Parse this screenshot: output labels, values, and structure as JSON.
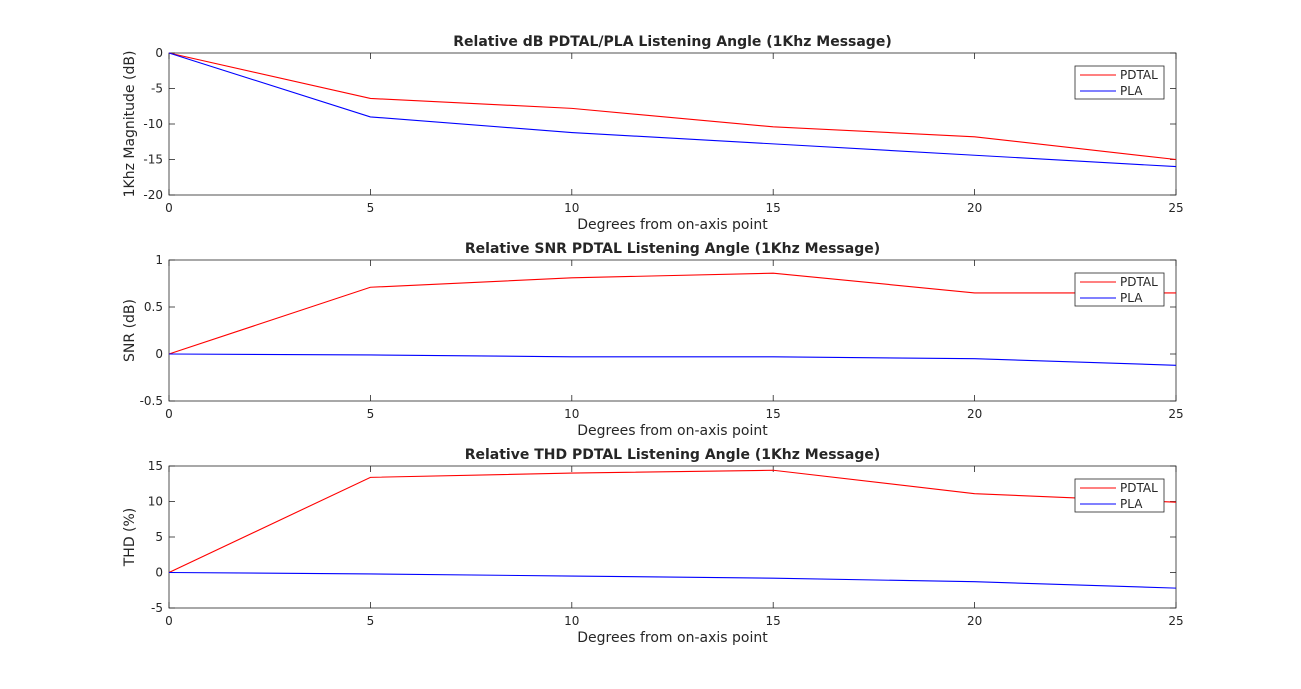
{
  "chart_data": [
    {
      "type": "line",
      "title": "Relative dB PDTAL/PLA Listening Angle (1Khz Message)",
      "xlabel": "Degrees from on-axis point",
      "ylabel": "1Khz Magnitude (dB)",
      "x": [
        0,
        5,
        10,
        15,
        20,
        25
      ],
      "xlim": [
        0,
        25
      ],
      "ylim": [
        -20,
        0
      ],
      "xticks": [
        "0",
        "5",
        "10",
        "15",
        "20",
        "25"
      ],
      "yticks": [
        "-20",
        "-15",
        "-10",
        "-5",
        "0"
      ],
      "grid": false,
      "legend_position": "top-right",
      "series": [
        {
          "name": "PDTAL",
          "color": "#ff0000",
          "values": [
            0,
            -6.4,
            -7.8,
            -10.4,
            -11.8,
            -15.0
          ]
        },
        {
          "name": "PLA",
          "color": "#0000ff",
          "values": [
            0,
            -9.0,
            -11.2,
            -12.8,
            -14.4,
            -16.0
          ]
        }
      ]
    },
    {
      "type": "line",
      "title": "Relative SNR PDTAL Listening Angle (1Khz Message)",
      "xlabel": "Degrees from on-axis point",
      "ylabel": "SNR (dB)",
      "x": [
        0,
        5,
        10,
        15,
        20,
        25
      ],
      "xlim": [
        0,
        25
      ],
      "ylim": [
        -0.5,
        1
      ],
      "xticks": [
        "0",
        "5",
        "10",
        "15",
        "20",
        "25"
      ],
      "yticks": [
        "-0.5",
        "0",
        "0.5",
        "1"
      ],
      "grid": false,
      "legend_position": "top-right",
      "series": [
        {
          "name": "PDTAL",
          "color": "#ff0000",
          "values": [
            0,
            0.71,
            0.81,
            0.86,
            0.65,
            0.65
          ]
        },
        {
          "name": "PLA",
          "color": "#0000ff",
          "values": [
            0,
            -0.01,
            -0.03,
            -0.03,
            -0.05,
            -0.12
          ]
        }
      ]
    },
    {
      "type": "line",
      "title": "Relative THD PDTAL Listening Angle (1Khz Message)",
      "xlabel": "Degrees from on-axis point",
      "ylabel": "THD (%)",
      "x": [
        0,
        5,
        10,
        15,
        20,
        25
      ],
      "xlim": [
        0,
        25
      ],
      "ylim": [
        -5,
        15
      ],
      "xticks": [
        "0",
        "5",
        "10",
        "15",
        "20",
        "25"
      ],
      "yticks": [
        "-5",
        "0",
        "5",
        "10",
        "15"
      ],
      "grid": false,
      "legend_position": "top-right",
      "series": [
        {
          "name": "PDTAL",
          "color": "#ff0000",
          "values": [
            0,
            13.4,
            14.0,
            14.4,
            11.1,
            9.9
          ]
        },
        {
          "name": "PLA",
          "color": "#0000ff",
          "values": [
            0,
            -0.2,
            -0.5,
            -0.8,
            -1.3,
            -2.2
          ]
        }
      ]
    }
  ]
}
